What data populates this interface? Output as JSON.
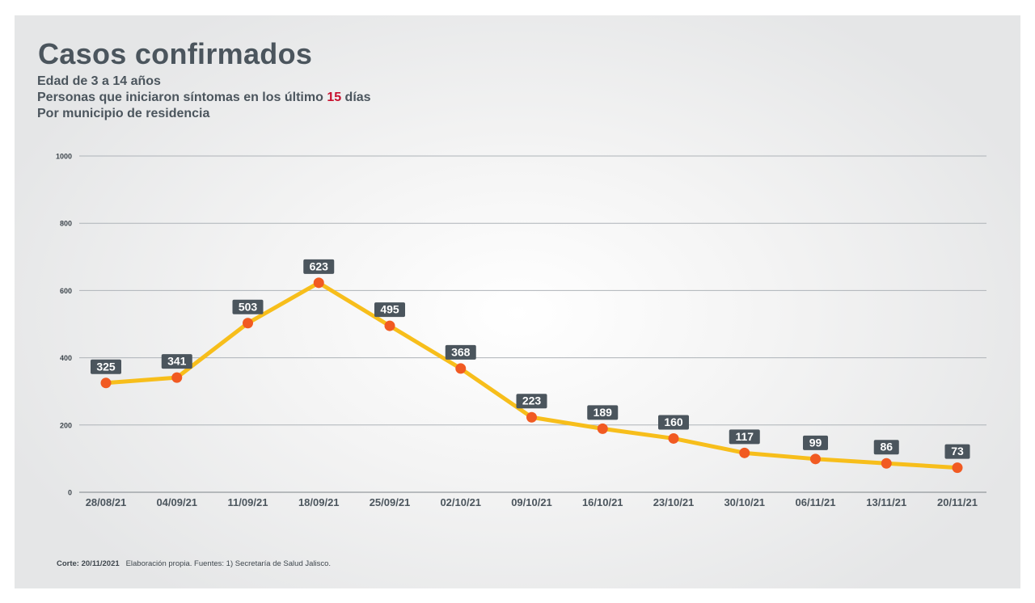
{
  "title": "Casos confirmados",
  "subtitle": {
    "line1": "Edad de 3 a 14 años",
    "line2_pre": "Personas que iniciaron síntomas en los último ",
    "line2_highlight": "15",
    "line2_post": " días",
    "line3": "Por municipio de residencia"
  },
  "footer": {
    "cut_label": "Corte: 20/11/2021",
    "note": "Elaboración propia.  Fuentes:  1) Secretaría de Salud Jalisco."
  },
  "colors": {
    "title": "#4b555d",
    "highlight": "#c8102e",
    "line": "#f7be1b",
    "marker": "#f15a22",
    "label_bg": "#4b555d",
    "label_text": "#ffffff",
    "grid": "#aeb3b8"
  },
  "chart_data": {
    "type": "line",
    "title": "Casos confirmados",
    "xlabel": "",
    "ylabel": "",
    "ylim": [
      0,
      1000
    ],
    "yticks": [
      0,
      200,
      400,
      600,
      800,
      1000
    ],
    "grid": true,
    "legend": "none",
    "categories": [
      "28/08/21",
      "04/09/21",
      "11/09/21",
      "18/09/21",
      "25/09/21",
      "02/10/21",
      "09/10/21",
      "16/10/21",
      "23/10/21",
      "30/10/21",
      "06/11/21",
      "13/11/21",
      "20/11/21"
    ],
    "series": [
      {
        "values": [
          325,
          341,
          503,
          623,
          495,
          368,
          223,
          189,
          160,
          117,
          99,
          86,
          73
        ]
      }
    ]
  }
}
